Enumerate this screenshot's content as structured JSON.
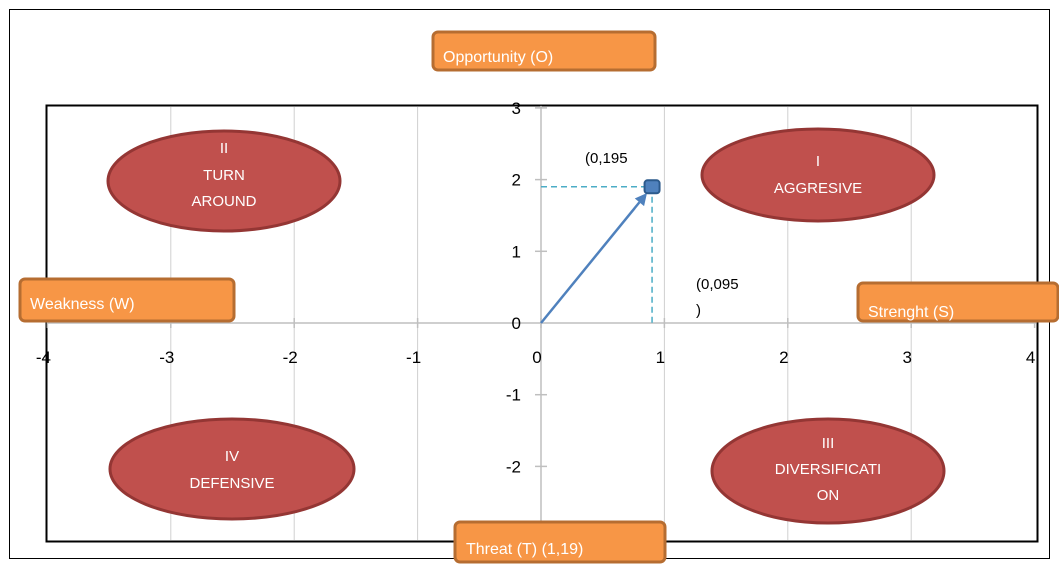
{
  "chart_data": {
    "type": "scatter",
    "xlim": [
      -4,
      4
    ],
    "ylim": [
      -3,
      3
    ],
    "x_ticks": [
      -4,
      -3,
      -2,
      -1,
      0,
      1,
      2,
      3,
      4
    ],
    "y_ticks": [
      3,
      2,
      1,
      0,
      -1,
      -2
    ],
    "grid": "vertical",
    "point": {
      "x": 0.9,
      "y": 1.9
    },
    "point_color": "#4F81BD",
    "vector_from": {
      "x": 0,
      "y": 0
    },
    "annotations": {
      "point_y": "(0,195",
      "point_x_line1": "(0,095",
      "point_x_line2": ")"
    },
    "axis_labels": {
      "top": "Opportunity (O)",
      "bottom": "Threat (T) (1,19)",
      "left": "Weakness (W)",
      "right": "Strenght (S)"
    },
    "quadrants": {
      "q1": {
        "lines": [
          "I",
          "AGGRESIVE"
        ]
      },
      "q2": {
        "lines": [
          "II",
          "TURN",
          "AROUND"
        ]
      },
      "q3": {
        "lines": [
          "III",
          "DIVERSIFICATI",
          "ON"
        ]
      },
      "q4": {
        "lines": [
          "IV",
          "DEFENSIVE"
        ]
      }
    },
    "colors": {
      "ellipse_fill": "#C0504D",
      "ellipse_stroke": "#943634",
      "label_fill": "#F79646",
      "label_stroke": "#B66D31",
      "dash": "#4BACC6"
    }
  }
}
